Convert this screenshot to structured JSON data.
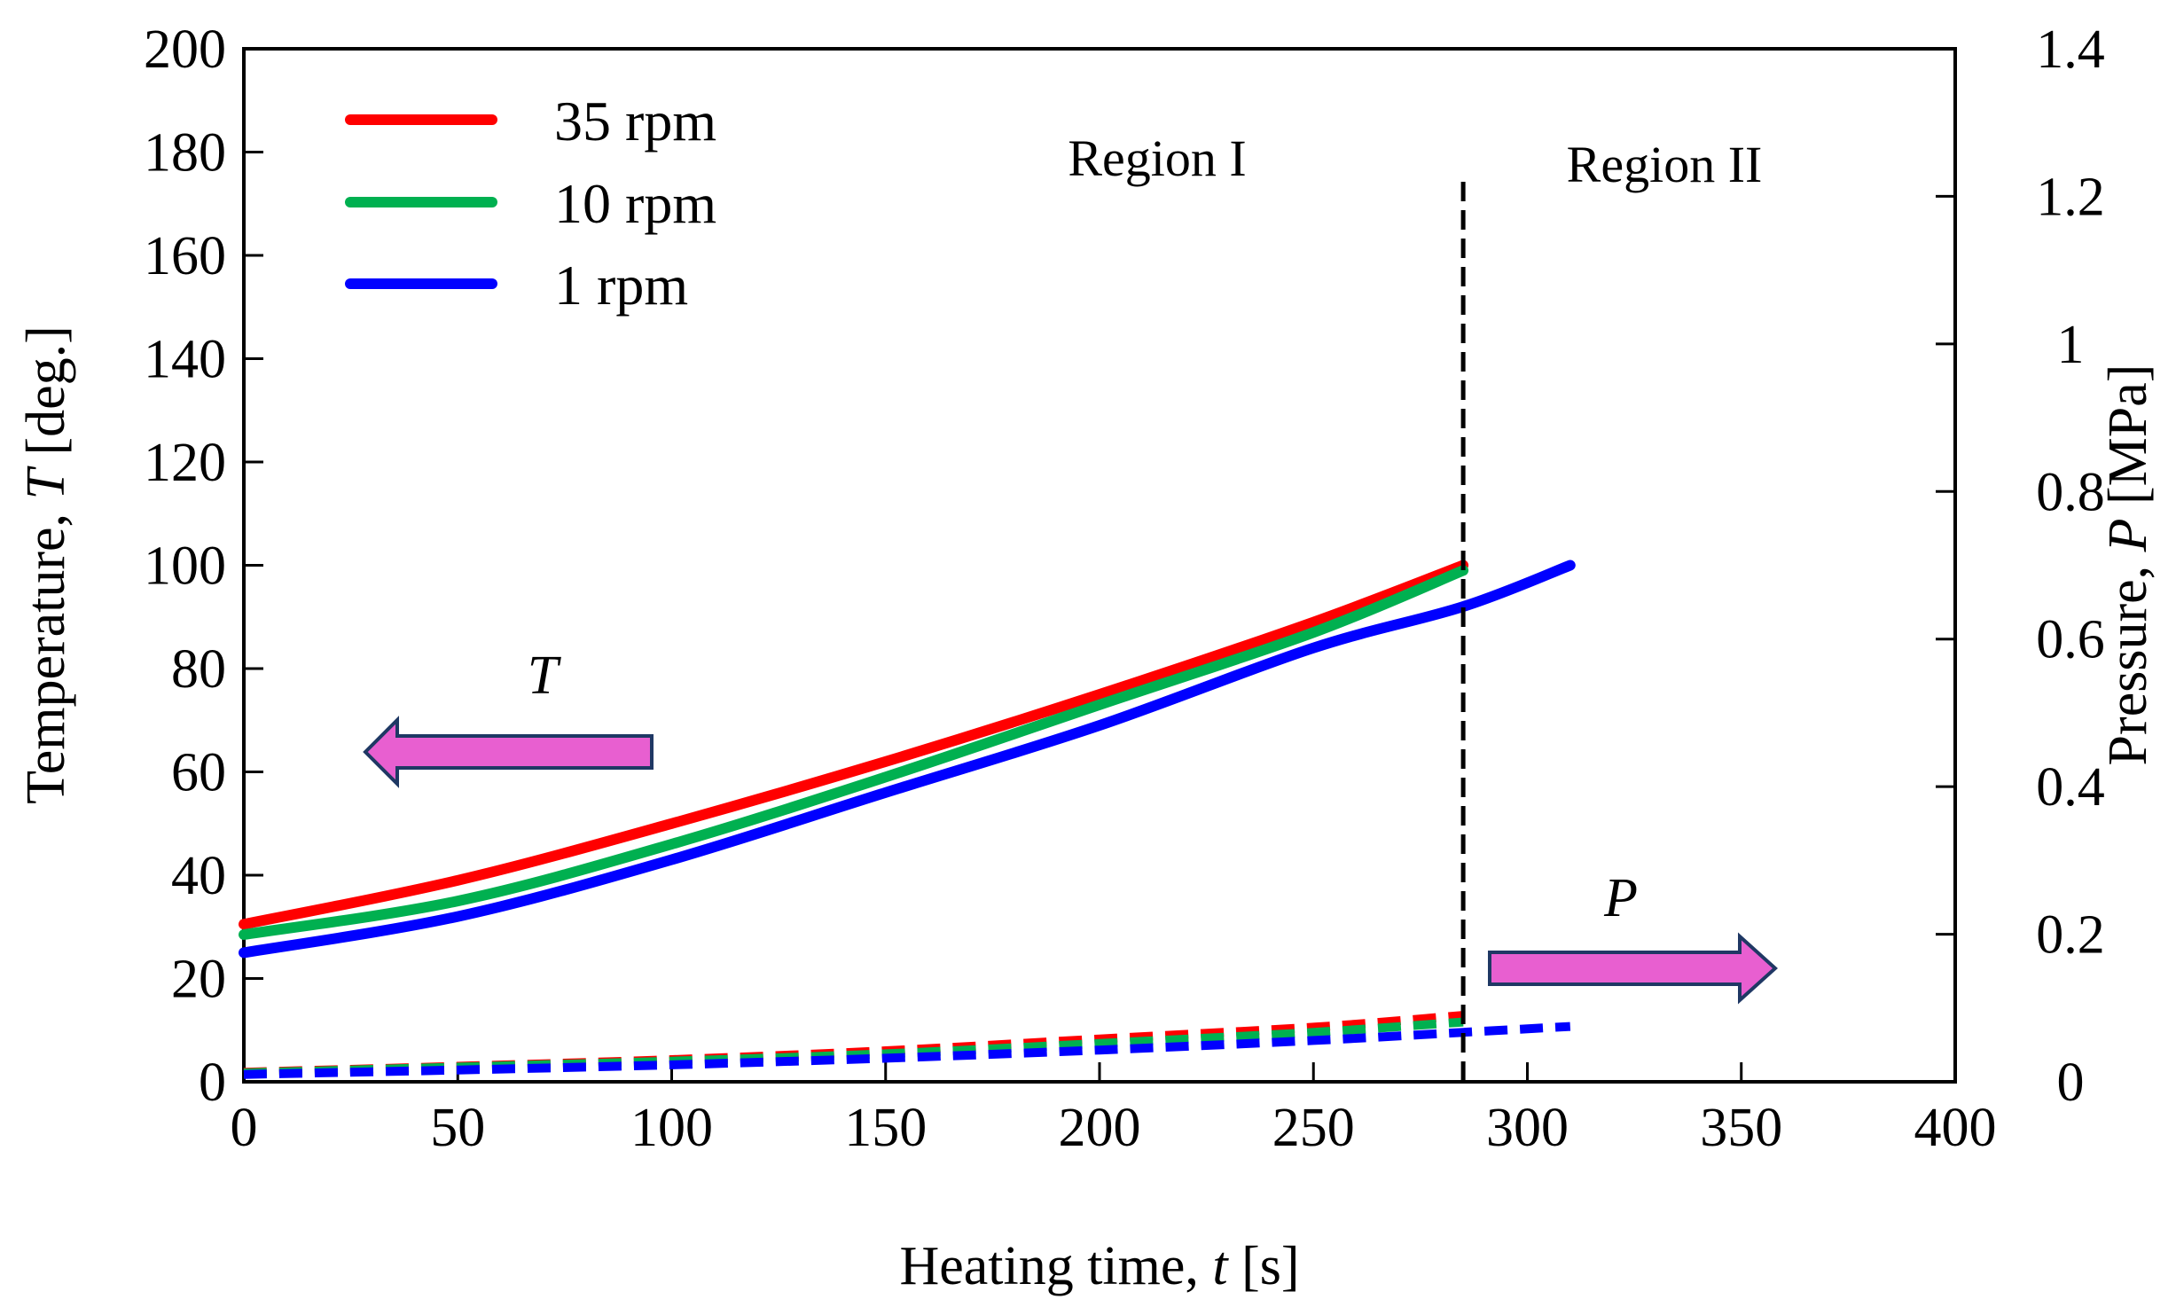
{
  "chart_data": {
    "type": "line",
    "x_axis": {
      "label_prefix": "Heating time, ",
      "label_var": "t",
      "label_suffix": " [s]",
      "range": [
        0,
        400
      ],
      "ticks": [
        0,
        50,
        100,
        150,
        200,
        250,
        300,
        350,
        400
      ]
    },
    "y_left": {
      "label_prefix": "Temperature, ",
      "label_var": "T",
      "label_suffix": " [deg.]",
      "range": [
        0,
        200
      ],
      "ticks": [
        0,
        20,
        40,
        60,
        80,
        100,
        120,
        140,
        160,
        180,
        200
      ]
    },
    "y_right": {
      "label_prefix": "Pressure, ",
      "label_var": "P",
      "label_suffix": " [MPa]",
      "range": [
        0,
        1.4
      ],
      "ticks": [
        "0",
        "0.2",
        "0.4",
        "0.6",
        "0.8",
        "1",
        "1.2",
        "1.4"
      ]
    },
    "series": [
      {
        "name": "35 rpm",
        "color": "#ff0000",
        "temperature": [
          [
            0,
            30.5
          ],
          [
            50,
            39
          ],
          [
            100,
            50
          ],
          [
            150,
            62
          ],
          [
            200,
            75
          ],
          [
            250,
            89
          ],
          [
            285,
            100
          ]
        ],
        "pressure": [
          [
            0,
            0.013
          ],
          [
            50,
            0.021
          ],
          [
            100,
            0.03
          ],
          [
            150,
            0.042
          ],
          [
            200,
            0.058
          ],
          [
            250,
            0.074
          ],
          [
            285,
            0.09
          ]
        ]
      },
      {
        "name": "10 rpm",
        "color": "#00b050",
        "temperature": [
          [
            0,
            28.5
          ],
          [
            50,
            35
          ],
          [
            100,
            46
          ],
          [
            150,
            59
          ],
          [
            200,
            73
          ],
          [
            250,
            87
          ],
          [
            285,
            99
          ]
        ],
        "pressure": [
          [
            0,
            0.012
          ],
          [
            50,
            0.02
          ],
          [
            100,
            0.028
          ],
          [
            150,
            0.038
          ],
          [
            200,
            0.052
          ],
          [
            250,
            0.067
          ],
          [
            285,
            0.081
          ]
        ]
      },
      {
        "name": "1 rpm",
        "color": "#0000ff",
        "temperature": [
          [
            0,
            25
          ],
          [
            50,
            32
          ],
          [
            100,
            43
          ],
          [
            150,
            56
          ],
          [
            200,
            69
          ],
          [
            250,
            84
          ],
          [
            285,
            92
          ],
          [
            310,
            100
          ]
        ],
        "pressure": [
          [
            0,
            0.01
          ],
          [
            50,
            0.016
          ],
          [
            100,
            0.023
          ],
          [
            150,
            0.032
          ],
          [
            200,
            0.043
          ],
          [
            250,
            0.056
          ],
          [
            285,
            0.067
          ],
          [
            310,
            0.075
          ]
        ]
      }
    ],
    "legend_position": "top-left",
    "boundary_x": 285,
    "regions": [
      "Region I",
      "Region II"
    ],
    "annotations": {
      "T": "T",
      "P": "P"
    },
    "arrow_color": "#e85fd0",
    "grid": false
  }
}
